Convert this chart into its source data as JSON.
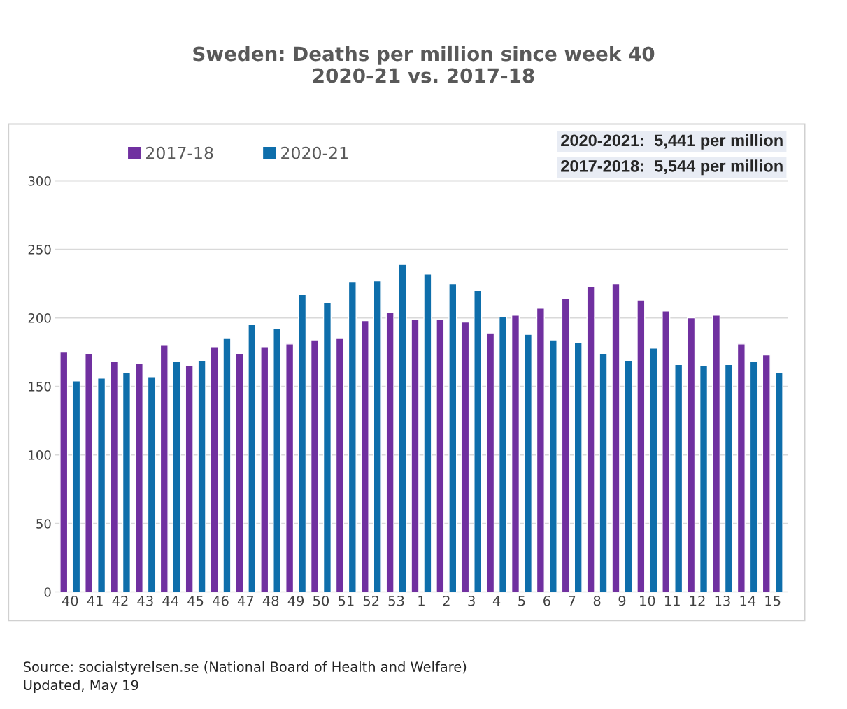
{
  "chart_data": {
    "type": "bar",
    "title": "Sweden: Deaths per million since week 40\n2020-21 vs. 2017-18",
    "categories": [
      "40",
      "41",
      "42",
      "43",
      "44",
      "45",
      "46",
      "47",
      "48",
      "49",
      "50",
      "51",
      "52",
      "53",
      "1",
      "2",
      "3",
      "4",
      "5",
      "6",
      "7",
      "8",
      "9",
      "10",
      "11",
      "12",
      "13",
      "14",
      "15"
    ],
    "series": [
      {
        "name": "2017-18",
        "color": "#7030a0",
        "values": [
          175,
          174,
          168,
          167,
          180,
          165,
          179,
          174,
          179,
          181,
          184,
          185,
          198,
          204,
          199,
          199,
          197,
          189,
          202,
          207,
          214,
          223,
          225,
          213,
          205,
          200,
          202,
          181,
          173
        ]
      },
      {
        "name": "2020-21",
        "color": "#0e6eab",
        "values": [
          154,
          156,
          160,
          157,
          168,
          169,
          185,
          195,
          192,
          217,
          211,
          226,
          227,
          239,
          232,
          225,
          220,
          201,
          188,
          184,
          182,
          174,
          169,
          178,
          166,
          165,
          166,
          168,
          160
        ]
      }
    ],
    "ylim": [
      0,
      300
    ],
    "yticks": [
      0,
      50,
      100,
      150,
      200,
      250,
      300
    ],
    "grid": "y",
    "legend": "top left",
    "annotations": [
      "2020-2021:  5,441 per million",
      "2017-2018:  5,544 per million",
      "Source: socialstyrelsen.se (National Board of Health and Welfare)\nUpdated, May 19"
    ]
  }
}
